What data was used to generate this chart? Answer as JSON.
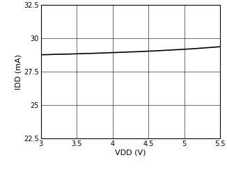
{
  "x": [
    3.0,
    3.1,
    3.2,
    3.3,
    3.4,
    3.5,
    3.6,
    3.7,
    3.8,
    3.9,
    4.0,
    4.1,
    4.2,
    4.3,
    4.4,
    4.5,
    4.6,
    4.7,
    4.8,
    4.9,
    5.0,
    5.1,
    5.2,
    5.3,
    5.4,
    5.5
  ],
  "y": [
    28.78,
    28.79,
    28.81,
    28.82,
    28.83,
    28.85,
    28.87,
    28.88,
    28.9,
    28.92,
    28.94,
    28.96,
    28.98,
    29.0,
    29.02,
    29.05,
    29.07,
    29.1,
    29.13,
    29.16,
    29.19,
    29.22,
    29.26,
    29.3,
    29.34,
    29.38
  ],
  "xlim": [
    3.0,
    5.5
  ],
  "ylim": [
    22.5,
    32.5
  ],
  "xticks": [
    3.0,
    3.5,
    4.0,
    4.5,
    5.0,
    5.5
  ],
  "xticklabels": [
    "3",
    "3.5",
    "4",
    "4.5",
    "5",
    "5.5"
  ],
  "yticks": [
    22.5,
    25.0,
    27.5,
    30.0,
    32.5
  ],
  "yticklabels": [
    "22.5",
    "25",
    "27.5",
    "30",
    "32.5"
  ],
  "xlabel": "VDD (V)",
  "ylabel": "IDD (mA)",
  "line_color": "#000000",
  "line_width": 1.2,
  "grid_color": "#000000",
  "grid_linewidth": 0.4,
  "background_color": "#ffffff",
  "tick_fontsize": 7,
  "label_fontsize": 8
}
